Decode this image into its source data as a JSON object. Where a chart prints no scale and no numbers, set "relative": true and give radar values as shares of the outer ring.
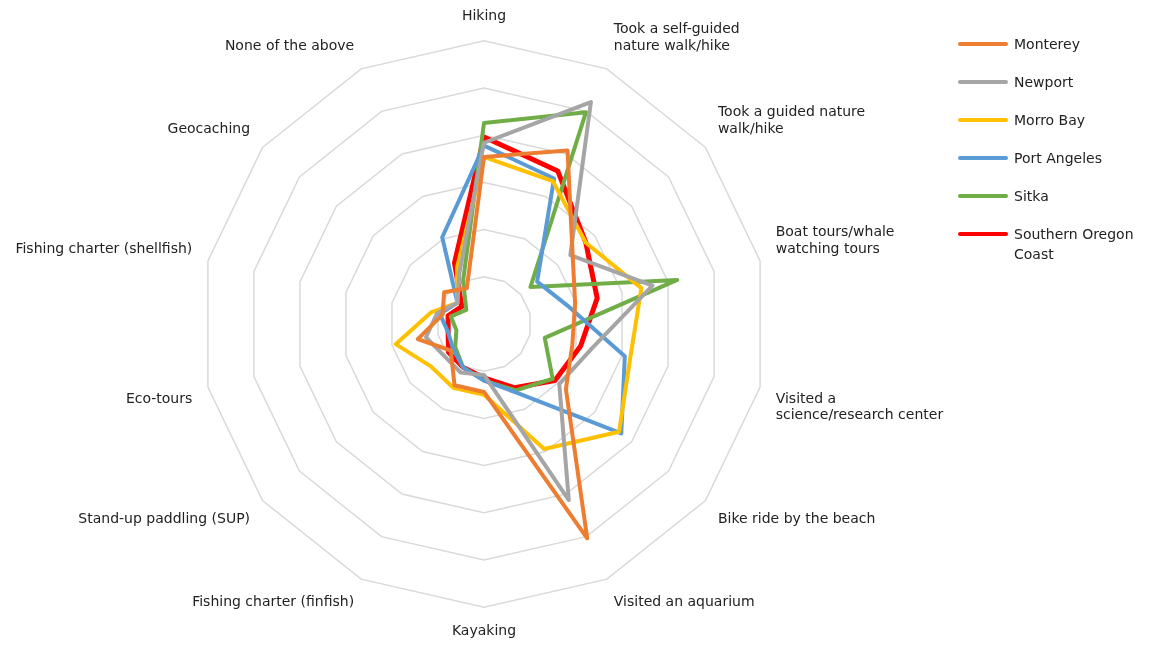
{
  "chart_data": {
    "type": "radar",
    "relative": true,
    "grid": true,
    "legend": "top right",
    "marker": "none",
    "line_style": "solid",
    "categories": [
      "Hiking",
      "Took a self-guided\nnature walk/hike",
      "Took a guided nature\nwalk/hike",
      "Boat tours/whale\nwatching tours",
      "Visited a\nscience/research center",
      "Bike ride by the beach",
      "Visited an aquarium",
      "Kayaking",
      "Fishing charter (finfish)",
      "Stand-up paddling (SUP)",
      "Eco-tours",
      "Fishing charter (shellfish)",
      "Geocaching",
      "None of the above"
    ],
    "series": [
      {
        "name": "Monterey",
        "color": "#ed7d31",
        "values": [
          0.59,
          0.68,
          0.4,
          0.33,
          0.32,
          0.37,
          0.84,
          0.24,
          0.24,
          0.15,
          0.24,
          0.15,
          0.18,
          0.14
        ]
      },
      {
        "name": "Newport",
        "color": "#a5a5a5",
        "values": [
          0.64,
          0.87,
          0.39,
          0.61,
          0.39,
          0.34,
          0.69,
          0.18,
          0.19,
          0.18,
          0.21,
          0.17,
          0.12,
          0.2
        ]
      },
      {
        "name": "Morro Bay",
        "color": "#ffc000",
        "values": [
          0.59,
          0.56,
          0.46,
          0.57,
          0.53,
          0.61,
          0.49,
          0.25,
          0.25,
          0.24,
          0.32,
          0.19,
          0.12,
          0.22
        ]
      },
      {
        "name": "Port Angeles",
        "color": "#5b9bd5",
        "values": [
          0.63,
          0.57,
          0.24,
          0.3,
          0.51,
          0.62,
          0.27,
          0.2,
          0.17,
          0.14,
          0.13,
          0.16,
          0.12,
          0.34
        ]
      },
      {
        "name": "Sitka",
        "color": "#70ad47",
        "values": [
          0.71,
          0.83,
          0.21,
          0.7,
          0.22,
          0.31,
          0.26,
          0.2,
          0.17,
          0.13,
          0.1,
          0.12,
          0.08,
          0.17
        ]
      },
      {
        "name": "Southern Oregon\nCoast",
        "color": "#ff0000",
        "values": [
          0.66,
          0.6,
          0.46,
          0.41,
          0.35,
          0.32,
          0.25,
          0.19,
          0.17,
          0.16,
          0.13,
          0.13,
          0.1,
          0.24
        ]
      }
    ]
  }
}
